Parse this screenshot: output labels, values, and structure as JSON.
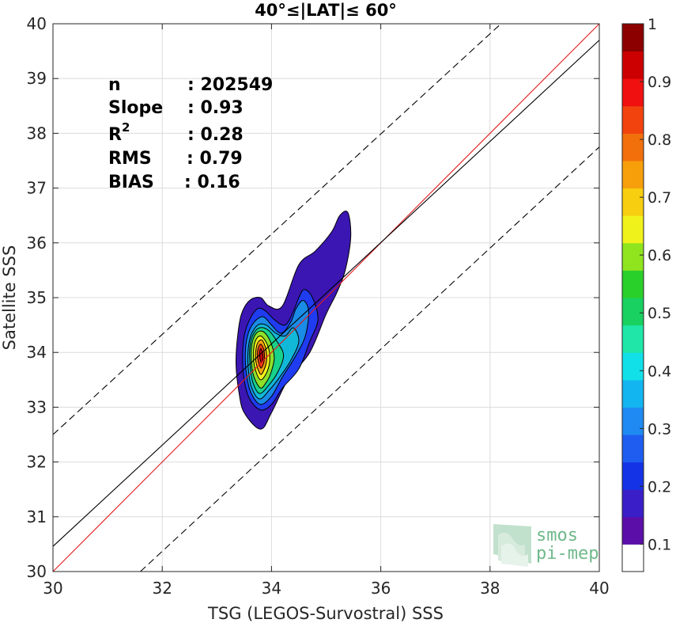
{
  "chart_data": {
    "type": "contour",
    "title": "40°≤|LAT|≤ 60°",
    "xlabel": "TSG (LEGOS-Survostral) SSS",
    "ylabel": "Satellite SSS",
    "xlim": [
      30,
      40
    ],
    "ylim": [
      30,
      40
    ],
    "xticks": [
      "30",
      "32",
      "34",
      "36",
      "38",
      "40"
    ],
    "yticks": [
      "30",
      "31",
      "32",
      "33",
      "34",
      "35",
      "36",
      "37",
      "38",
      "39",
      "40"
    ],
    "grid": true,
    "stats": [
      {
        "label": "n",
        "value": ": 202549"
      },
      {
        "label": "Slope",
        "value": ": 0.93"
      },
      {
        "label": "R",
        "sup": "2",
        "value": ": 0.28"
      },
      {
        "label": "RMS",
        "value": ": 0.79"
      },
      {
        "label": "BIAS",
        "value": ": 0.16"
      }
    ],
    "lines": [
      {
        "name": "identity",
        "color": "#e31a1c",
        "style": "solid",
        "points": [
          [
            30,
            30
          ],
          [
            40,
            40
          ]
        ]
      },
      {
        "name": "regression",
        "color": "#000000",
        "style": "solid",
        "points": [
          [
            30,
            30.46
          ],
          [
            40,
            39.7
          ]
        ]
      },
      {
        "name": "upper-bound",
        "color": "#000000",
        "style": "dashed",
        "points": [
          [
            30,
            32.5
          ],
          [
            38.2,
            40
          ]
        ]
      },
      {
        "name": "lower-bound",
        "color": "#000000",
        "style": "dashed",
        "points": [
          [
            31.6,
            30
          ],
          [
            40,
            37.75
          ]
        ]
      }
    ],
    "density_contours": [
      {
        "level": 0.05,
        "color": "#3b16b3",
        "points": [
          [
            33.8,
            32.6
          ],
          [
            33.5,
            32.9
          ],
          [
            33.4,
            33.3
          ],
          [
            33.35,
            33.8
          ],
          [
            33.38,
            34.3
          ],
          [
            33.45,
            34.7
          ],
          [
            33.6,
            34.95
          ],
          [
            33.8,
            35.0
          ],
          [
            33.95,
            34.85
          ],
          [
            34.2,
            34.85
          ],
          [
            34.5,
            35.6
          ],
          [
            34.8,
            35.85
          ],
          [
            35.1,
            36.2
          ],
          [
            35.25,
            36.5
          ],
          [
            35.4,
            36.55
          ],
          [
            35.45,
            36.1
          ],
          [
            35.35,
            35.5
          ],
          [
            35.2,
            35.1
          ],
          [
            35.0,
            34.7
          ],
          [
            34.7,
            34.0
          ],
          [
            34.3,
            33.5
          ],
          [
            34.0,
            32.9
          ]
        ]
      },
      {
        "level": 0.15,
        "color": "#1f3cf0",
        "points": [
          [
            33.8,
            32.95
          ],
          [
            33.6,
            33.15
          ],
          [
            33.5,
            33.5
          ],
          [
            33.47,
            33.9
          ],
          [
            33.5,
            34.3
          ],
          [
            33.6,
            34.6
          ],
          [
            33.75,
            34.8
          ],
          [
            33.9,
            34.75
          ],
          [
            34.05,
            34.6
          ],
          [
            34.25,
            34.5
          ],
          [
            34.4,
            34.75
          ],
          [
            34.5,
            35.0
          ],
          [
            34.6,
            35.15
          ],
          [
            34.75,
            35.0
          ],
          [
            34.85,
            34.6
          ],
          [
            34.7,
            34.2
          ],
          [
            34.5,
            33.7
          ],
          [
            34.2,
            33.35
          ],
          [
            34.0,
            33.05
          ]
        ]
      },
      {
        "level": 0.25,
        "color": "#1a8be6",
        "points": [
          [
            33.8,
            33.05
          ],
          [
            33.63,
            33.25
          ],
          [
            33.55,
            33.55
          ],
          [
            33.52,
            33.95
          ],
          [
            33.56,
            34.3
          ],
          [
            33.68,
            34.55
          ],
          [
            33.85,
            34.65
          ],
          [
            34.0,
            34.5
          ],
          [
            34.18,
            34.35
          ],
          [
            34.35,
            34.55
          ],
          [
            34.45,
            34.8
          ],
          [
            34.58,
            34.95
          ],
          [
            34.68,
            34.75
          ],
          [
            34.62,
            34.3
          ],
          [
            34.45,
            33.95
          ],
          [
            34.2,
            33.55
          ],
          [
            34.0,
            33.2
          ]
        ]
      },
      {
        "level": 0.35,
        "color": "#12b8d8",
        "points": [
          [
            33.78,
            33.15
          ],
          [
            33.64,
            33.35
          ],
          [
            33.58,
            33.65
          ],
          [
            33.57,
            34.0
          ],
          [
            33.62,
            34.3
          ],
          [
            33.75,
            34.5
          ],
          [
            33.9,
            34.5
          ],
          [
            34.08,
            34.35
          ],
          [
            34.25,
            34.3
          ],
          [
            34.4,
            34.45
          ],
          [
            34.5,
            34.2
          ],
          [
            34.35,
            33.85
          ],
          [
            34.15,
            33.55
          ],
          [
            33.95,
            33.3
          ]
        ]
      },
      {
        "level": 0.45,
        "color": "#18d18a",
        "points": [
          [
            33.78,
            33.25
          ],
          [
            33.66,
            33.45
          ],
          [
            33.61,
            33.75
          ],
          [
            33.6,
            34.05
          ],
          [
            33.65,
            34.3
          ],
          [
            33.78,
            34.45
          ],
          [
            33.95,
            34.4
          ],
          [
            34.1,
            34.2
          ],
          [
            34.22,
            33.95
          ],
          [
            34.12,
            33.65
          ],
          [
            33.95,
            33.4
          ]
        ]
      },
      {
        "level": 0.55,
        "color": "#8ee02a",
        "points": [
          [
            33.8,
            33.35
          ],
          [
            33.68,
            33.55
          ],
          [
            33.63,
            33.85
          ],
          [
            33.64,
            34.15
          ],
          [
            33.72,
            34.35
          ],
          [
            33.85,
            34.38
          ],
          [
            33.98,
            34.2
          ],
          [
            34.05,
            33.9
          ],
          [
            33.98,
            33.6
          ],
          [
            33.9,
            33.45
          ]
        ]
      },
      {
        "level": 0.65,
        "color": "#f2f21c",
        "points": [
          [
            33.8,
            33.5
          ],
          [
            33.7,
            33.7
          ],
          [
            33.67,
            33.95
          ],
          [
            33.7,
            34.2
          ],
          [
            33.8,
            34.3
          ],
          [
            33.92,
            34.15
          ],
          [
            33.97,
            33.9
          ],
          [
            33.92,
            33.65
          ]
        ]
      },
      {
        "level": 0.75,
        "color": "#f5a30f",
        "points": [
          [
            33.8,
            33.6
          ],
          [
            33.72,
            33.8
          ],
          [
            33.71,
            34.0
          ],
          [
            33.75,
            34.18
          ],
          [
            33.83,
            34.22
          ],
          [
            33.9,
            34.05
          ],
          [
            33.91,
            33.85
          ],
          [
            33.87,
            33.7
          ]
        ]
      },
      {
        "level": 0.85,
        "color": "#f03c14",
        "points": [
          [
            33.8,
            33.72
          ],
          [
            33.75,
            33.88
          ],
          [
            33.75,
            34.05
          ],
          [
            33.8,
            34.15
          ],
          [
            33.86,
            34.05
          ],
          [
            33.87,
            33.88
          ],
          [
            33.84,
            33.76
          ]
        ]
      },
      {
        "level": 0.95,
        "color": "#c00010",
        "points": [
          [
            33.81,
            33.82
          ],
          [
            33.78,
            33.95
          ],
          [
            33.8,
            34.07
          ],
          [
            33.84,
            33.98
          ],
          [
            33.84,
            33.86
          ]
        ]
      }
    ],
    "colorbar": {
      "ticks": [
        "0.1",
        "0.2",
        "0.3",
        "0.4",
        "0.5",
        "0.6",
        "0.7",
        "0.8",
        "0.9",
        "1"
      ],
      "colors": [
        "#ffffff",
        "#5b0fa8",
        "#3a1fc8",
        "#1533e6",
        "#1f5df0",
        "#1f8af2",
        "#13b5f0",
        "#12e0e8",
        "#20e6a8",
        "#18d160",
        "#2ad02a",
        "#8fe41e",
        "#f0f21c",
        "#f7cf10",
        "#f79f0b",
        "#f2700c",
        "#f2430f",
        "#f01010",
        "#cc0000",
        "#8c0000"
      ]
    }
  },
  "logo": {
    "line1": "smos",
    "line2": "pi-mep"
  }
}
